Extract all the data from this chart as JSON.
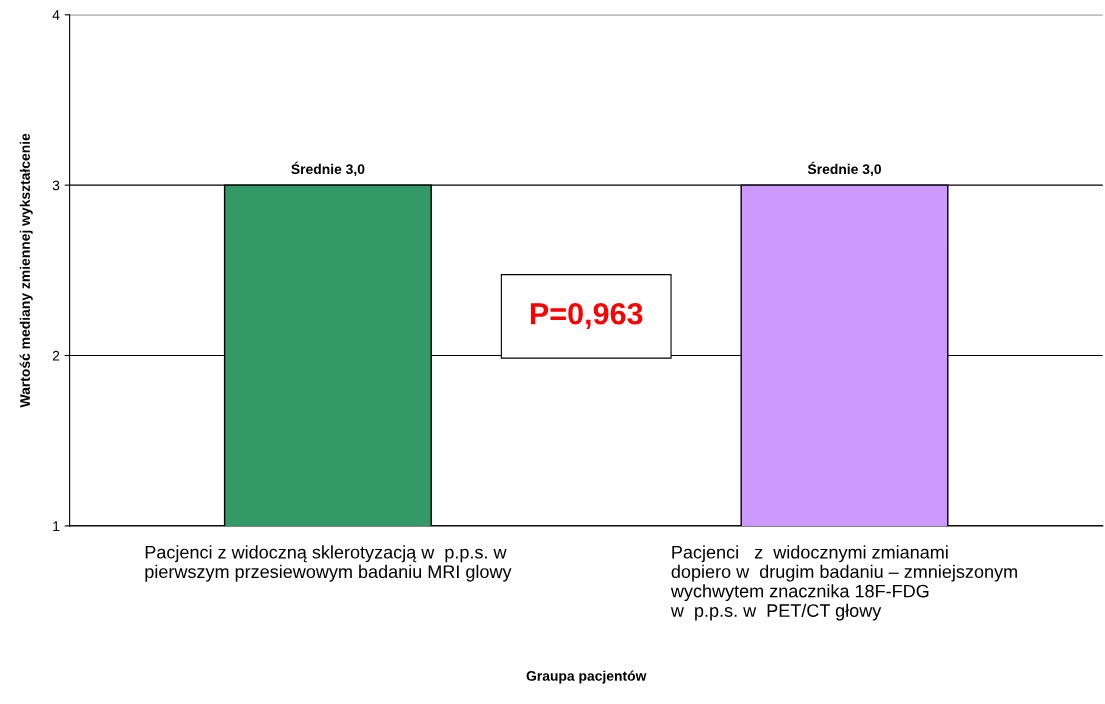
{
  "chart_data": {
    "type": "bar",
    "xlabel": "Graupa pacjentów",
    "ylabel": "Wartość mediany zmiennej wykształcenie",
    "categories": [
      "Pacjenci z widoczną sklerotyzacją w  p.p.s. w\npierwszym przesiewowym badaniu MRI glowy",
      "Pacjenci   z  widocznymi zmianami\ndopiero w  drugim badaniu – zmniejszonym\nwychwytem znacznika 18F-FDG\nw  p.p.s. w  PET/CT głowy"
    ],
    "values": [
      3,
      3
    ],
    "colors": [
      "#339966",
      "#cc99ff"
    ],
    "value_labels": [
      "Średnie 3,0",
      "Średnie 3,0"
    ],
    "ylim": [
      1,
      4
    ],
    "yticks": [
      1,
      2,
      3,
      4
    ],
    "grid": "y",
    "legend": false,
    "annotations": [
      "P=0,963"
    ]
  }
}
